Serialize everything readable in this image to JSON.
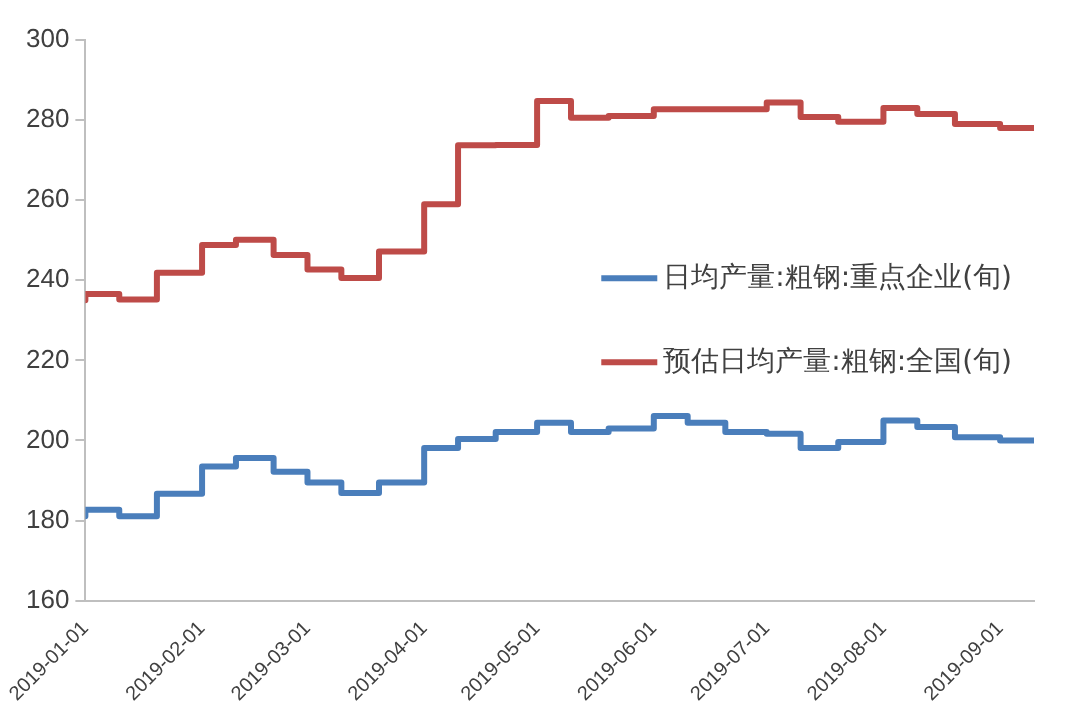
{
  "chart_data": {
    "type": "step",
    "x": [
      "2019-01-01",
      "2019-01-10",
      "2019-01-20",
      "2019-02-01",
      "2019-02-10",
      "2019-02-20",
      "2019-03-01",
      "2019-03-10",
      "2019-03-20",
      "2019-04-01",
      "2019-04-10",
      "2019-04-20",
      "2019-05-01",
      "2019-05-10",
      "2019-05-20",
      "2019-06-01",
      "2019-06-10",
      "2019-06-20",
      "2019-07-01",
      "2019-07-10",
      "2019-07-20",
      "2019-08-01",
      "2019-08-10",
      "2019-08-20",
      "2019-09-01",
      "2019-09-10"
    ],
    "series": [
      {
        "name": "日均产量:粗钢:重点企业(旬)",
        "color": "#4a7ebb",
        "values": [
          181.1,
          182.7,
          181.1,
          186.7,
          193.5,
          195.6,
          192.2,
          189.5,
          186.9,
          189.5,
          198.1,
          200.4,
          202.1,
          204.4,
          202.1,
          203,
          206.1,
          204.4,
          202.1,
          201.7,
          198.1,
          199.6,
          205,
          203.4,
          200.8,
          200
        ]
      },
      {
        "name": "预估日均产量:粗钢:全国(旬)",
        "color": "#be4b48",
        "values": [
          235,
          236.6,
          235.2,
          241.9,
          248.8,
          250.1,
          246.3,
          242.7,
          240.6,
          247.2,
          259,
          273.7,
          273.8,
          284.8,
          280.6,
          281,
          282.7,
          282.7,
          282.7,
          284.4,
          280.8,
          279.6,
          283,
          281.5,
          279,
          278
        ]
      }
    ],
    "xlim": [
      "2019-01-01",
      "2019-09-10"
    ],
    "xticks": [
      "2019-01-01",
      "2019-02-01",
      "2019-03-01",
      "2019-04-01",
      "2019-05-01",
      "2019-06-01",
      "2019-07-01",
      "2019-08-01",
      "2019-09-01"
    ],
    "ylim": [
      160,
      300
    ],
    "yticks": [
      160,
      180,
      200,
      220,
      240,
      260,
      280,
      300
    ],
    "grid": false,
    "legend": "right",
    "marker": "none",
    "line_style": "solid"
  }
}
